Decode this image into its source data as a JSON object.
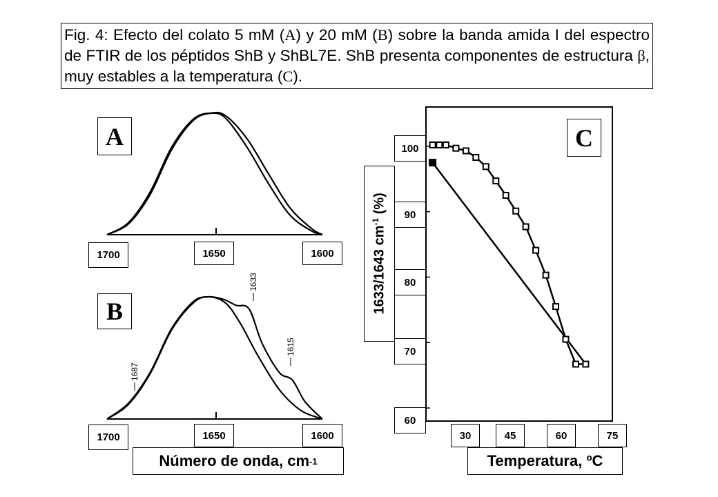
{
  "caption": {
    "part1": "Fig. 4: Efecto del colato 5 mM (",
    "a": "A",
    "part2": ") y 20 mM (",
    "b": "B",
    "part3": ") sobre la banda amida I del espectro de FTIR de los péptidos ShB y ShBL7E. ShB presenta componentes de estructura ",
    "beta": "β",
    "part4": ", muy estables a la temperatura (",
    "c": "C",
    "part5": ")."
  },
  "chart_data": [
    {
      "panel": "A",
      "type": "line",
      "title": "",
      "xlabel": "",
      "ylabel": "",
      "x_ticks": [
        "1700",
        "1650",
        "1600"
      ],
      "xlim": [
        1700,
        1600
      ],
      "series": [
        {
          "x": [
            1700,
            1690,
            1680,
            1670,
            1660,
            1652,
            1645,
            1635,
            1625,
            1615,
            1605,
            1600
          ],
          "y": [
            0.0,
            0.1,
            0.35,
            0.72,
            0.95,
            1.0,
            0.96,
            0.72,
            0.42,
            0.16,
            0.03,
            0.0
          ]
        },
        {
          "x": [
            1700,
            1690,
            1680,
            1670,
            1660,
            1652,
            1645,
            1635,
            1625,
            1615,
            1605,
            1600
          ],
          "y": [
            0.0,
            0.09,
            0.33,
            0.7,
            0.94,
            1.0,
            0.98,
            0.79,
            0.5,
            0.22,
            0.05,
            0.0
          ]
        }
      ]
    },
    {
      "panel": "B",
      "type": "line",
      "title": "",
      "xlabel": "Número de onda, cm",
      "xlabel_sup": "-1",
      "ylabel": "",
      "x_ticks": [
        "1700",
        "1650",
        "1600"
      ],
      "xlim": [
        1700,
        1600
      ],
      "annotations": [
        "1687",
        "1633",
        "1615"
      ],
      "series": [
        {
          "x": [
            1700,
            1690,
            1680,
            1670,
            1660,
            1653,
            1646,
            1640,
            1634,
            1628,
            1620,
            1614,
            1608,
            1600
          ],
          "y": [
            0.0,
            0.13,
            0.38,
            0.74,
            0.96,
            1.0,
            0.98,
            0.93,
            0.9,
            0.62,
            0.38,
            0.32,
            0.14,
            0.0
          ]
        },
        {
          "x": [
            1700,
            1690,
            1680,
            1670,
            1660,
            1653,
            1645,
            1638,
            1630,
            1620,
            1610,
            1600
          ],
          "y": [
            0.0,
            0.12,
            0.37,
            0.73,
            0.95,
            1.0,
            0.95,
            0.78,
            0.52,
            0.24,
            0.07,
            0.0
          ]
        }
      ]
    },
    {
      "panel": "C",
      "type": "scatter",
      "title": "",
      "xlabel": "Temperatura, ºC",
      "ylabel": "1633/1643 cm",
      "ylabel_sup": "-1",
      "ylabel_tail": " (%)",
      "xlim": [
        20,
        76
      ],
      "ylim": [
        58,
        106
      ],
      "x_ticks": [
        "30",
        "45",
        "60",
        "75"
      ],
      "y_ticks": [
        "100",
        "90",
        "80",
        "70",
        "60"
      ],
      "series": [
        {
          "marker": "open-square",
          "x": [
            22,
            24,
            26,
            29,
            32,
            35,
            38,
            41,
            44,
            47,
            50,
            53,
            56,
            59,
            62,
            65,
            68
          ],
          "y": [
            100.2,
            100.2,
            100.2,
            99.7,
            99.3,
            98.3,
            96.9,
            94.7,
            92.5,
            90.1,
            87.7,
            84.1,
            80.3,
            75.5,
            70.5,
            66.7,
            66.7
          ]
        },
        {
          "marker": "filled-square",
          "x": [
            22,
            68
          ],
          "y": [
            97.5,
            66.7
          ]
        }
      ]
    }
  ]
}
